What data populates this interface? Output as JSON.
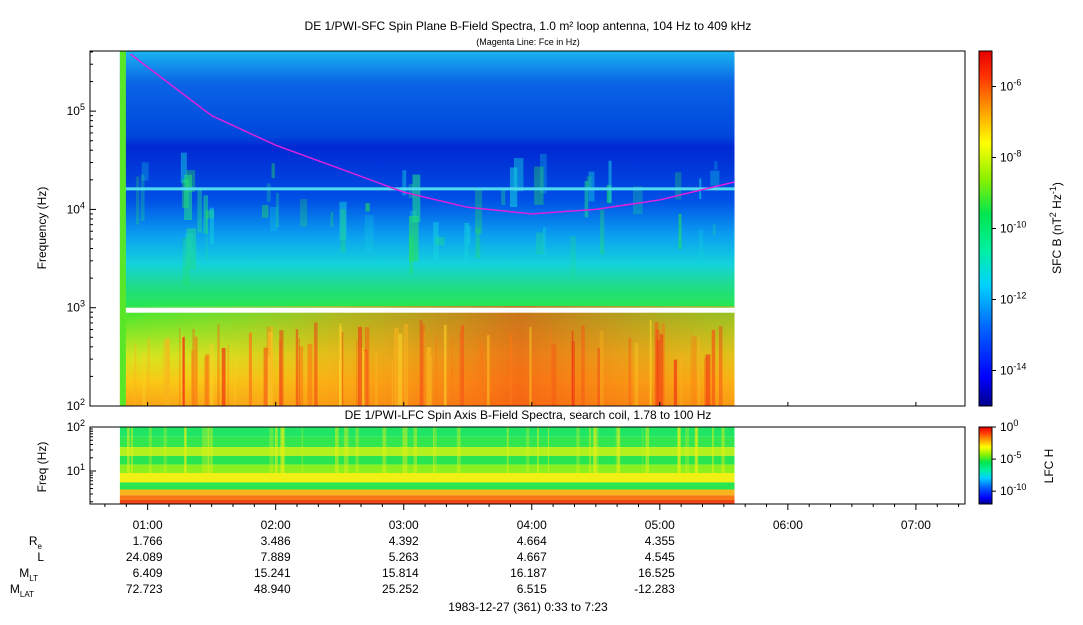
{
  "chart_data": [
    {
      "type": "heatmap",
      "title": "DE 1/PWI-SFC  Spin Plane B-Field Spectra, 1.0 m² loop antenna, 104 Hz to 409 kHz",
      "subtitle": "(Magenta Line: Fce in Hz)",
      "ylabel": "Frequency (Hz)",
      "yscale": "log",
      "ylim": [
        100,
        409000
      ],
      "y_ticks": [
        {
          "value": 100,
          "mantissa": "10",
          "exp": "2"
        },
        {
          "value": 1000,
          "mantissa": "10",
          "exp": "3"
        },
        {
          "value": 10000,
          "mantissa": "10",
          "exp": "4"
        },
        {
          "value": 100000,
          "mantissa": "10",
          "exp": "5"
        }
      ],
      "colorbar": {
        "label_parts": [
          "SFC B (nT",
          "2",
          " Hz",
          "-1",
          ")"
        ],
        "scale": "log",
        "range": [
          1e-15,
          1e-05
        ],
        "ticks": [
          {
            "value": 1e-06,
            "mantissa": "10",
            "exp": "-6"
          },
          {
            "value": 1e-08,
            "mantissa": "10",
            "exp": "-8"
          },
          {
            "value": 1e-10,
            "mantissa": "10",
            "exp": "-10"
          },
          {
            "value": 1e-12,
            "mantissa": "10",
            "exp": "-12"
          },
          {
            "value": 1e-14,
            "mantissa": "10",
            "exp": "-14"
          }
        ]
      },
      "data_interval": [
        "0:47",
        "5:35"
      ],
      "fce_line": {
        "name": "Fce in Hz",
        "color": "#dd22dd",
        "points": [
          [
            "0:52",
            380000
          ],
          [
            "1:30",
            90000
          ],
          [
            "2:00",
            45000
          ],
          [
            "2:30",
            26000
          ],
          [
            "3:00",
            15000
          ],
          [
            "3:30",
            10500
          ],
          [
            "4:00",
            9000
          ],
          [
            "4:30",
            10000
          ],
          [
            "5:00",
            12500
          ],
          [
            "5:35",
            19000
          ]
        ]
      }
    },
    {
      "type": "heatmap",
      "title": "DE 1/PWI-LFC  Spin Axis B-Field Spectra, search coil, 1.78 to 100 Hz",
      "ylabel": "Freq (Hz)",
      "yscale": "log",
      "ylim": [
        1.78,
        100
      ],
      "y_ticks": [
        {
          "value": 10,
          "mantissa": "10",
          "exp": "1"
        },
        {
          "value": 100,
          "mantissa": "10",
          "exp": "2"
        }
      ],
      "colorbar": {
        "label": "LFC H",
        "scale": "log",
        "range": [
          1e-12,
          1
        ],
        "ticks": [
          {
            "value": 1,
            "mantissa": "10",
            "exp": "0"
          },
          {
            "value": 1e-05,
            "mantissa": "10",
            "exp": "-5"
          },
          {
            "value": 1e-10,
            "mantissa": "10",
            "exp": "-10"
          }
        ]
      },
      "data_interval": [
        "0:47",
        "5:35"
      ]
    }
  ],
  "time_axis": {
    "range": [
      "0:33",
      "7:23"
    ],
    "ticks": [
      "01:00",
      "02:00",
      "03:00",
      "04:00",
      "05:00",
      "06:00",
      "07:00"
    ]
  },
  "ephemeris": {
    "rows": [
      {
        "label": "R",
        "sub": "e",
        "values": [
          "1.766",
          "3.486",
          "4.392",
          "4.664",
          "4.355"
        ]
      },
      {
        "label": "L",
        "sub": "",
        "values": [
          "24.089",
          "7.889",
          "5.263",
          "4.667",
          "4.545"
        ]
      },
      {
        "label": "M",
        "sub": "LT",
        "values": [
          "6.409",
          "15.241",
          "15.814",
          "16.187",
          "16.525"
        ]
      },
      {
        "label": "M",
        "sub": "LAT",
        "values": [
          "72.723",
          "48.940",
          "25.252",
          "6.515",
          "-12.283"
        ]
      }
    ]
  },
  "footer": "1983-12-27 (361) 0:33 to 7:23"
}
